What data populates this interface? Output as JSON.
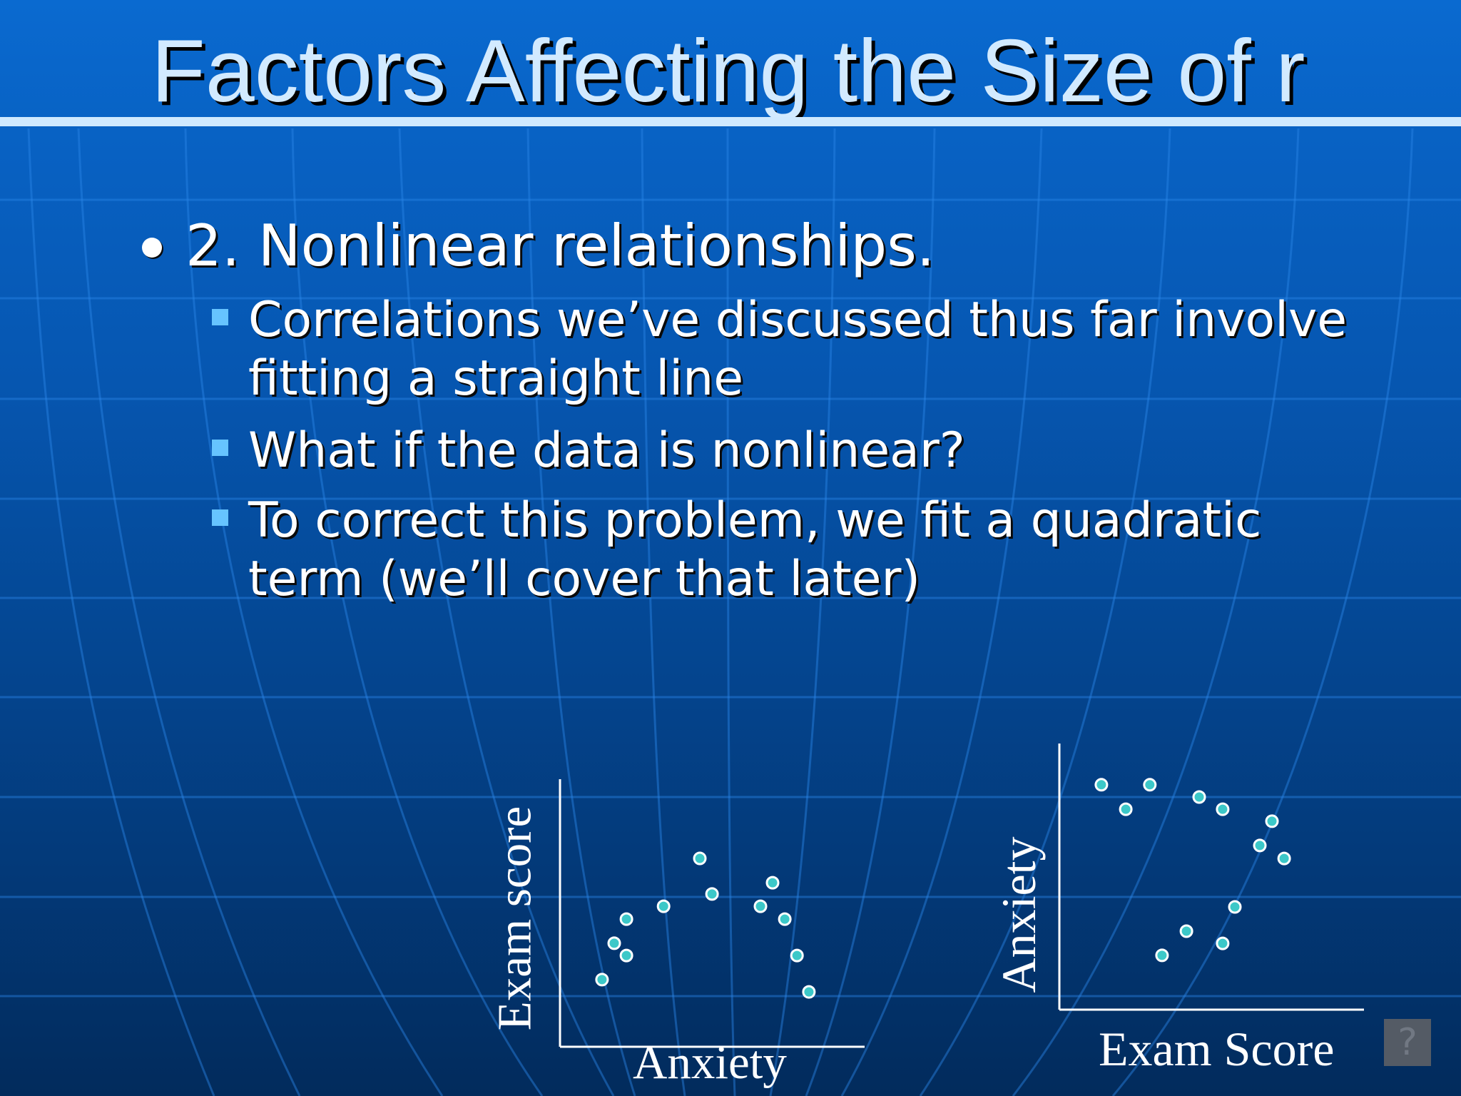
{
  "slide": {
    "title": "Factors Affecting the Size of r",
    "bullets": [
      {
        "text": "2. Nonlinear relationships.",
        "sub_bullets": [
          {
            "lines": [
              "Correlations we’ve discussed thus far involve",
              "fitting a straight line"
            ]
          },
          {
            "lines": [
              "What if the data is nonlinear?"
            ]
          },
          {
            "lines": [
              "To correct this problem, we fit a quadratic",
              "term (we’ll cover that later)"
            ]
          }
        ]
      }
    ]
  },
  "colors": {
    "title_text": "#d2eaff",
    "title_rule": "#cfe9ff",
    "sub_bullet_square": "#66c4ff",
    "point_fill": "#3cc8c8",
    "point_stroke": "#ffffff",
    "axis": "#ffffff"
  },
  "help_button": {
    "icon": "question-mark-icon",
    "label": "?"
  },
  "chart_data": [
    {
      "type": "scatter",
      "title": "",
      "xlabel": "Anxiety",
      "ylabel": "Exam score",
      "xlim": [
        0,
        100
      ],
      "ylim": [
        0,
        100
      ],
      "grid": false,
      "legend": null,
      "ticks": false,
      "points": [
        {
          "x": 13.8,
          "y": 25.1
        },
        {
          "x": 17.8,
          "y": 38.7
        },
        {
          "x": 21.8,
          "y": 34.1
        },
        {
          "x": 21.8,
          "y": 47.7
        },
        {
          "x": 34.0,
          "y": 52.5
        },
        {
          "x": 45.9,
          "y": 70.4
        },
        {
          "x": 49.9,
          "y": 57.1
        },
        {
          "x": 65.8,
          "y": 52.5
        },
        {
          "x": 69.8,
          "y": 61.3
        },
        {
          "x": 73.8,
          "y": 47.7
        },
        {
          "x": 77.8,
          "y": 34.1
        },
        {
          "x": 81.7,
          "y": 20.5
        }
      ]
    },
    {
      "type": "scatter",
      "title": "",
      "xlabel": "Exam Score",
      "ylabel": "Anxiety",
      "xlim": [
        0,
        100
      ],
      "ylim": [
        0,
        100
      ],
      "grid": false,
      "legend": null,
      "ticks": false,
      "points": [
        {
          "x": 13.8,
          "y": 84.5
        },
        {
          "x": 21.8,
          "y": 75.3
        },
        {
          "x": 29.7,
          "y": 84.5
        },
        {
          "x": 45.9,
          "y": 79.9
        },
        {
          "x": 53.6,
          "y": 75.3
        },
        {
          "x": 69.8,
          "y": 70.8
        },
        {
          "x": 65.8,
          "y": 61.7
        },
        {
          "x": 73.8,
          "y": 56.8
        },
        {
          "x": 57.6,
          "y": 38.6
        },
        {
          "x": 41.7,
          "y": 29.5
        },
        {
          "x": 53.6,
          "y": 24.9
        },
        {
          "x": 33.7,
          "y": 20.4
        }
      ]
    }
  ]
}
